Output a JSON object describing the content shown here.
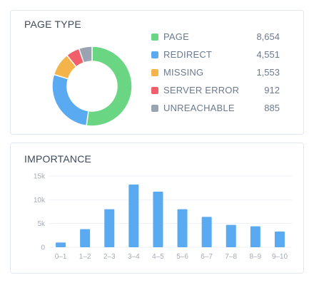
{
  "page_type": {
    "title": "PAGE TYPE",
    "items": [
      {
        "label": "PAGE",
        "value": "8,654",
        "number": 8654,
        "color": "#6ad684"
      },
      {
        "label": "REDIRECT",
        "value": "4,551",
        "number": 4551,
        "color": "#5aaaf2"
      },
      {
        "label": "MISSING",
        "value": "1,553",
        "number": 1553,
        "color": "#f4b44a"
      },
      {
        "label": "SERVER ERROR",
        "value": "912",
        "number": 912,
        "color": "#f05f6a"
      },
      {
        "label": "UNREACHABLE",
        "value": "885",
        "number": 885,
        "color": "#9aa3b1"
      }
    ]
  },
  "importance": {
    "title": "IMPORTANCE"
  },
  "chart_data": [
    {
      "type": "pie",
      "title": "PAGE TYPE",
      "categories": [
        "PAGE",
        "REDIRECT",
        "MISSING",
        "SERVER ERROR",
        "UNREACHABLE"
      ],
      "values": [
        8654,
        4551,
        1553,
        912,
        885
      ],
      "colors": [
        "#6ad684",
        "#5aaaf2",
        "#f4b44a",
        "#f05f6a",
        "#9aa3b1"
      ],
      "legend": "right"
    },
    {
      "type": "bar",
      "title": "IMPORTANCE",
      "categories": [
        "0–1",
        "1–2",
        "2–3",
        "3–4",
        "4–5",
        "5–6",
        "6–7",
        "7–8",
        "8–9",
        "9–10"
      ],
      "values": [
        1000,
        3800,
        8000,
        13200,
        11700,
        8000,
        6400,
        4700,
        4400,
        3300
      ],
      "ylim": [
        0,
        15000
      ],
      "yticks": [
        0,
        5000,
        10000,
        15000
      ],
      "ytick_labels": [
        "0",
        "5k",
        "10k",
        "15k"
      ],
      "bar_color": "#5aaaf2",
      "grid": true
    }
  ]
}
